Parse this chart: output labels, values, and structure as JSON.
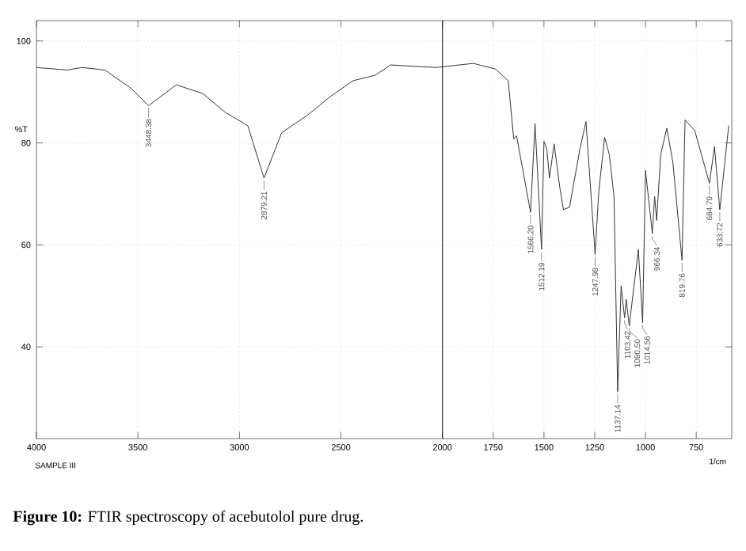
{
  "chart_data": {
    "type": "line",
    "xlabel": "1/cm",
    "ylabel": "%T",
    "color": "#333333",
    "x": [
      4000,
      3848,
      3774,
      3663,
      3533,
      3448,
      3311,
      3181,
      3070,
      2959,
      2879,
      2792,
      2663,
      2552,
      2441,
      2330,
      2256,
      2033,
      1848,
      1739,
      1676,
      1649,
      1635,
      1566,
      1544,
      1512,
      1500,
      1486,
      1473,
      1450,
      1423,
      1404,
      1374,
      1323,
      1293,
      1248,
      1230,
      1201,
      1178,
      1155,
      1137,
      1120,
      1103,
      1095,
      1080,
      1035,
      1014,
      1000,
      966,
      955,
      945,
      925,
      895,
      865,
      820,
      805,
      757,
      685,
      660,
      634,
      590
    ],
    "values": [
      94.8,
      94.3,
      94.8,
      94.3,
      90.7,
      87.3,
      91.4,
      89.7,
      86,
      83.4,
      73.1,
      82,
      85.5,
      89.1,
      92.2,
      93.3,
      95.3,
      94.8,
      95.6,
      94.5,
      92.2,
      80.8,
      81.4,
      66.4,
      83.8,
      59.1,
      80.3,
      78.8,
      73.1,
      79.8,
      71.5,
      66.9,
      67.4,
      78.8,
      84.2,
      58.1,
      70.5,
      81.1,
      77.7,
      69.5,
      31.2,
      52,
      45.7,
      49.3,
      44.1,
      59.1,
      44.7,
      74.6,
      62.2,
      69.5,
      64.8,
      77.7,
      82.9,
      76.2,
      57,
      84.5,
      82.4,
      72.1,
      79.3,
      66.9,
      83.4
    ],
    "xlim": [
      4000,
      575
    ],
    "ylim": [
      22,
      104
    ],
    "xticks": [
      4000,
      3500,
      3000,
      2500,
      2000,
      1750,
      1500,
      1250,
      1000,
      750
    ],
    "yticks": [
      40,
      60,
      80,
      100
    ],
    "grid": true,
    "ref_lines": [
      {
        "axis": "x",
        "value": 2000,
        "color": "#000000"
      }
    ],
    "annotations": [
      {
        "text": "3448.38",
        "x": 3448,
        "y": 87.3
      },
      {
        "text": "2879.21",
        "x": 2879,
        "y": 73.1
      },
      {
        "text": "1566.20",
        "x": 1566,
        "y": 66.4
      },
      {
        "text": "1512.19",
        "x": 1512,
        "y": 59.1
      },
      {
        "text": "1247.98",
        "x": 1248,
        "y": 58.1
      },
      {
        "text": "1137.14",
        "x": 1137,
        "y": 31.2
      },
      {
        "text": "1103.42",
        "x": 1103,
        "y": 45.7
      },
      {
        "text": "1080.50",
        "x": 1080,
        "y": 44.1
      },
      {
        "text": "1014.56",
        "x": 1014,
        "y": 44.7
      },
      {
        "text": "966.34",
        "x": 966,
        "y": 62.2
      },
      {
        "text": "819.76",
        "x": 820,
        "y": 57
      },
      {
        "text": "684.79",
        "x": 685,
        "y": 72.1
      },
      {
        "text": "633.72",
        "x": 634,
        "y": 66.9
      },
      "SAMPLE III",
      "**Figure 10:** FTIR spectroscopy of acebutolol pure drug."
    ]
  }
}
